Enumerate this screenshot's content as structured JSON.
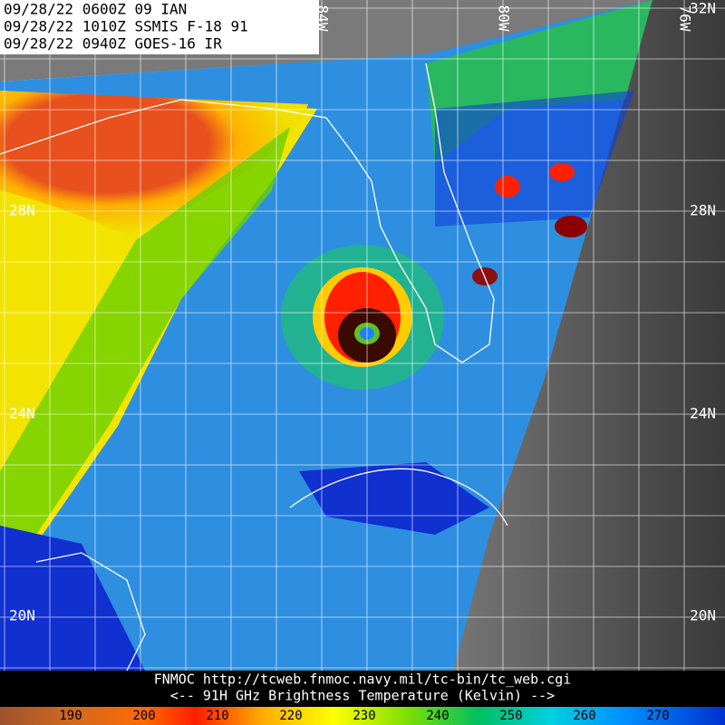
{
  "header": {
    "lines": [
      "09/28/22 0600Z  09 IAN",
      "09/28/22 1010Z  SSMIS F-18 91",
      "09/28/22 0940Z  GOES-16 IR"
    ]
  },
  "latitude_labels": {
    "left": [
      "28N",
      "24N",
      "20N"
    ],
    "right": [
      "32N",
      "28N",
      "24N",
      "20N"
    ]
  },
  "longitude_labels": [
    "84W",
    "80W",
    "76W"
  ],
  "footer": {
    "source": "FNMOC  http://tcweb.fnmoc.navy.mil/tc-bin/tc_web.cgi",
    "caption": "<--  91H GHz Brightness Temperature (Kelvin)  -->"
  },
  "color_scale": {
    "labels": [
      "190",
      "200",
      "210",
      "220",
      "230",
      "240",
      "250",
      "260",
      "270"
    ]
  }
}
